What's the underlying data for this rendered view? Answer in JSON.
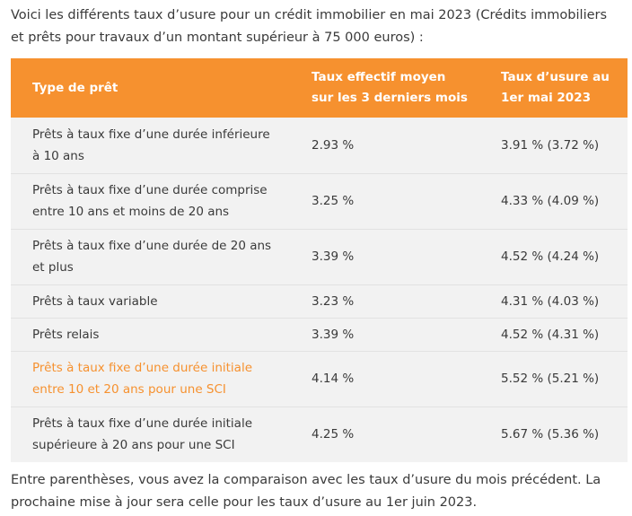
{
  "intro": "Voici les différents taux d’usure pour un crédit immobilier en mai 2023 (Crédits immobiliers et prêts pour travaux d’un montant supérieur à 75 000 euros) :",
  "table": {
    "headers": {
      "type": "Type de prêt",
      "avg_line1": "Taux effectif moyen",
      "avg_line2": "sur les 3 derniers mois",
      "usure_line1": "Taux d’usure au",
      "usure_line2": "1er mai 2023"
    },
    "rows": [
      {
        "type_line1": "Prêts à taux fixe d’une durée inférieure",
        "type_line2": "à 10 ans",
        "avg": "2.93 %",
        "usure": "3.91 % (3.72 %)"
      },
      {
        "type_line1": "Prêts à taux fixe d’une durée comprise",
        "type_line2": "entre 10 ans et moins de 20 ans",
        "avg": "3.25 %",
        "usure": "4.33 % (4.09 %)"
      },
      {
        "type_line1": "Prêts à taux fixe d’une durée de 20 ans",
        "type_line2": "et plus",
        "avg": "3.39 %",
        "usure": "4.52 % (4.24 %)"
      },
      {
        "type_line1": "Prêts à taux variable",
        "type_line2": "",
        "avg": "3.23 %",
        "usure": "4.31 % (4.03 %)"
      },
      {
        "type_line1": "Prêts relais",
        "type_line2": "",
        "avg": "3.39 %",
        "usure": "4.52 % (4.31 %)"
      },
      {
        "type_line1": "Prêts à taux fixe d’une durée initiale",
        "type_line2": "entre 10 et 20 ans pour une SCI",
        "avg": "4.14 %",
        "usure": "5.52 % (5.21 %)"
      },
      {
        "type_line1": "Prêts à taux fixe d’une durée initiale",
        "type_line2": "supérieure à 20 ans pour une SCI",
        "avg": "4.25 %",
        "usure": "5.67 % (5.36 %)"
      }
    ]
  },
  "outro": "Entre parenthèses, vous avez la comparaison avec les taux d’usure du mois précédent. La prochaine mise à jour sera celle pour les taux d’usure au 1er juin 2023.",
  "colors": {
    "accent": "#f6912f",
    "row_background": "#f2f2f2",
    "text": "#3a3a3a"
  }
}
